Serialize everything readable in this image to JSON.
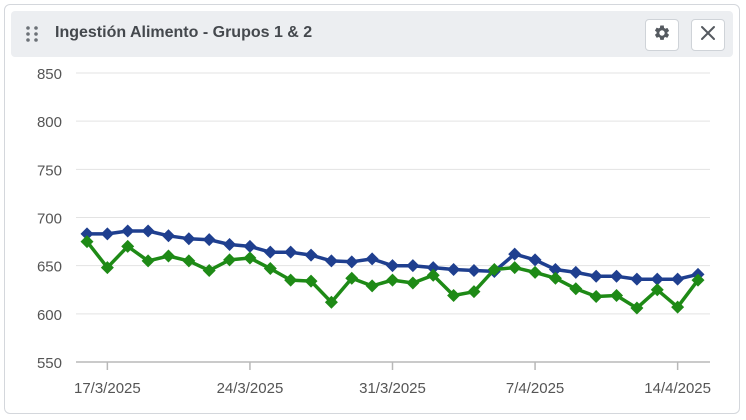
{
  "widget": {
    "title": "Ingestión Alimento - Grupos 1 & 2",
    "icons": {
      "drag": "drag-handle-icon",
      "settings": "gear-icon",
      "close": "close-icon"
    }
  },
  "colors": {
    "series1": "#1f3f8f",
    "series2": "#1e8a16",
    "grid": "#e3e3e3",
    "axis_text": "#555555",
    "header_bg": "#eceef1"
  },
  "chart_data": {
    "type": "line",
    "title": "",
    "xlabel": "",
    "ylabel": "",
    "ylim": [
      550,
      850
    ],
    "yticks": [
      "850",
      "800",
      "750",
      "700",
      "650",
      "600",
      "550"
    ],
    "xticks": [
      {
        "label": "17/3/2025",
        "index": 1
      },
      {
        "label": "24/3/2025",
        "index": 8
      },
      {
        "label": "31/3/2025",
        "index": 15
      },
      {
        "label": "7/4/2025",
        "index": 22
      },
      {
        "label": "14/4/2025",
        "index": 29
      }
    ],
    "grid": true,
    "legend": "none",
    "x": [
      "16/3/2025",
      "17/3/2025",
      "18/3/2025",
      "19/3/2025",
      "20/3/2025",
      "21/3/2025",
      "22/3/2025",
      "23/3/2025",
      "24/3/2025",
      "25/3/2025",
      "26/3/2025",
      "27/3/2025",
      "28/3/2025",
      "29/3/2025",
      "30/3/2025",
      "31/3/2025",
      "1/4/2025",
      "2/4/2025",
      "3/4/2025",
      "4/4/2025",
      "5/4/2025",
      "6/4/2025",
      "7/4/2025",
      "8/4/2025",
      "9/4/2025",
      "10/4/2025",
      "11/4/2025",
      "12/4/2025",
      "13/4/2025",
      "14/4/2025",
      "15/4/2025"
    ],
    "series": [
      {
        "values": [
          683,
          683,
          686,
          686,
          681,
          678,
          677,
          672,
          670,
          664,
          664,
          661,
          655,
          654,
          657,
          650,
          650,
          648,
          646,
          645,
          644,
          662,
          656,
          646,
          643,
          639,
          639,
          636,
          636,
          636,
          641
        ]
      },
      {
        "values": [
          675,
          648,
          670,
          655,
          660,
          655,
          645,
          656,
          658,
          647,
          635,
          634,
          612,
          637,
          629,
          635,
          632,
          640,
          619,
          623,
          646,
          648,
          643,
          637,
          626,
          618,
          619,
          606,
          625,
          607,
          635
        ]
      }
    ]
  }
}
